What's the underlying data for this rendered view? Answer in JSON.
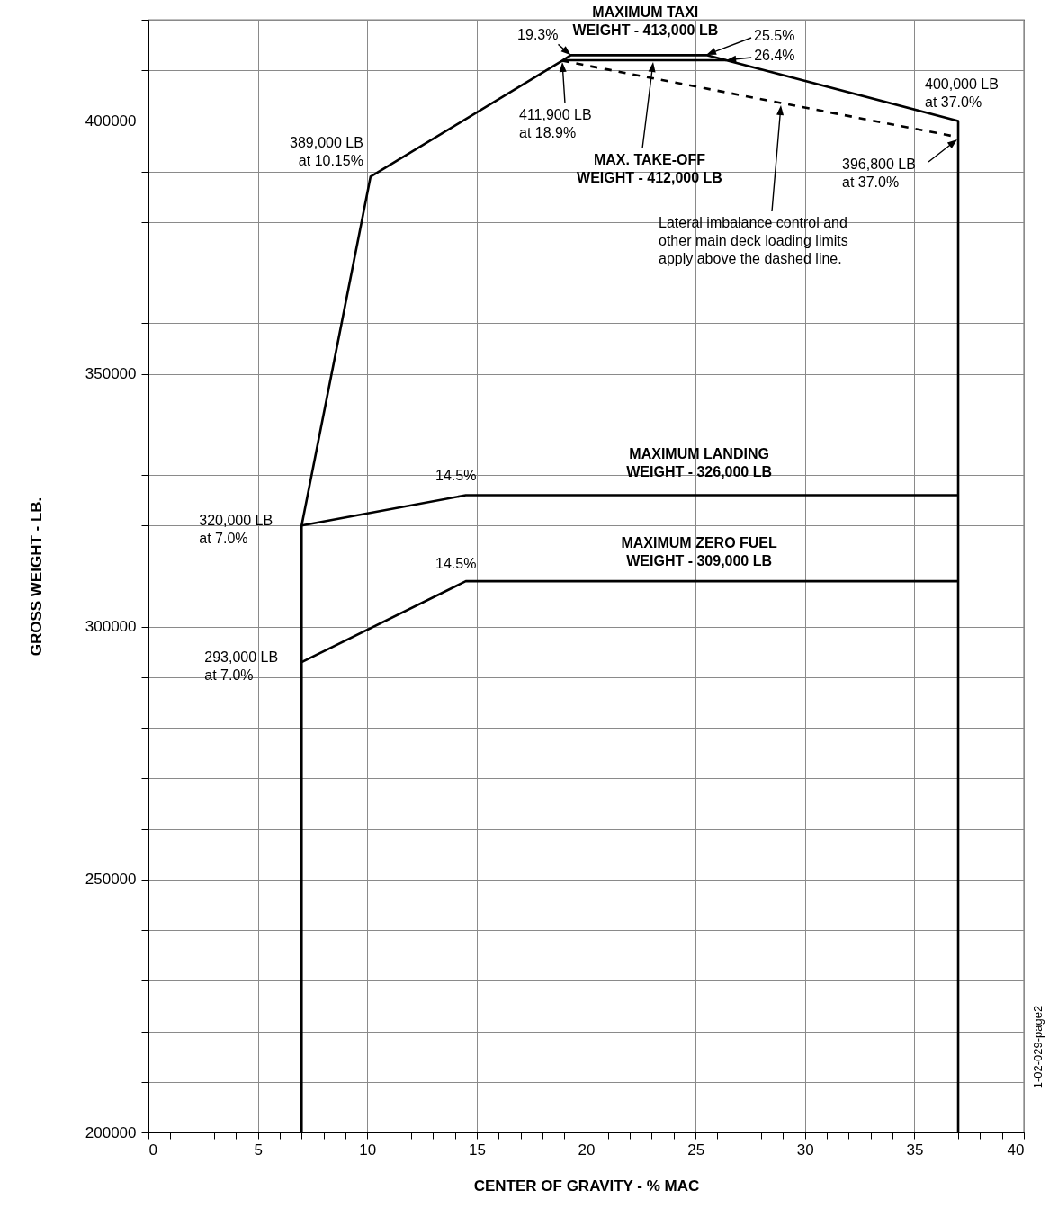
{
  "chart_data": {
    "type": "line",
    "xlabel": "CENTER OF GRAVITY - % MAC",
    "ylabel": "GROSS WEIGHT - LB.",
    "xlim": [
      0,
      40
    ],
    "ylim": [
      200000,
      420000
    ],
    "xticks": [
      0,
      {
        "value": 1,
        "label": null
      },
      {
        "value": 2,
        "label": null
      },
      {
        "value": 3,
        "label": null
      },
      {
        "value": 4,
        "label": null
      },
      5,
      {
        "value": 6,
        "label": null
      },
      {
        "value": 7,
        "label": null
      },
      {
        "value": 8,
        "label": null
      },
      {
        "value": 9,
        "label": null
      },
      10,
      {
        "value": 11,
        "label": null
      },
      {
        "value": 12,
        "label": null
      },
      {
        "value": 13,
        "label": null
      },
      {
        "value": 14,
        "label": null
      },
      15,
      {
        "value": 16,
        "label": null
      },
      {
        "value": 17,
        "label": null
      },
      {
        "value": 18,
        "label": null
      },
      {
        "value": 19,
        "label": null
      },
      20,
      {
        "value": 21,
        "label": null
      },
      {
        "value": 22,
        "label": null
      },
      {
        "value": 23,
        "label": null
      },
      {
        "value": 24,
        "label": null
      },
      25,
      {
        "value": 26,
        "label": null
      },
      {
        "value": 27,
        "label": null
      },
      {
        "value": 28,
        "label": null
      },
      {
        "value": 29,
        "label": null
      },
      30,
      {
        "value": 31,
        "label": null
      },
      {
        "value": 32,
        "label": null
      },
      {
        "value": 33,
        "label": null
      },
      {
        "value": 34,
        "label": null
      },
      35,
      {
        "value": 36,
        "label": null
      },
      {
        "value": 37,
        "label": null
      },
      {
        "value": 38,
        "label": null
      },
      {
        "value": 39,
        "label": null
      },
      40
    ],
    "yticks": [
      200000,
      {
        "value": 210000,
        "label": null
      },
      {
        "value": 220000,
        "label": null
      },
      {
        "value": 230000,
        "label": null
      },
      {
        "value": 240000,
        "label": null
      },
      250000,
      {
        "value": 260000,
        "label": null
      },
      {
        "value": 270000,
        "label": null
      },
      {
        "value": 280000,
        "label": null
      },
      {
        "value": 290000,
        "label": null
      },
      300000,
      {
        "value": 310000,
        "label": null
      },
      {
        "value": 320000,
        "label": null
      },
      {
        "value": 330000,
        "label": null
      },
      {
        "value": 340000,
        "label": null
      },
      350000,
      {
        "value": 360000,
        "label": null
      },
      {
        "value": 370000,
        "label": null
      },
      {
        "value": 380000,
        "label": null
      },
      {
        "value": 390000,
        "label": null
      },
      400000,
      {
        "value": 410000,
        "label": null
      },
      {
        "value": 420000,
        "label": null
      }
    ],
    "grid": true,
    "marker": "none",
    "series": [
      {
        "type": "line",
        "color": "#000000",
        "line_style": "solid",
        "x": [
          7,
          7,
          10.15,
          18.9,
          19.3,
          25.5,
          26.4,
          37,
          37
        ],
        "values": [
          200000,
          320000,
          389000,
          411900,
          413000,
          413000,
          412000,
          400000,
          200000
        ]
      },
      {
        "type": "line",
        "color": "#000000",
        "line_style": "solid",
        "x": [
          19.0,
          26.4
        ],
        "values": [
          412000,
          412000
        ]
      },
      {
        "type": "line",
        "color": "#000000",
        "line_style": "dashed",
        "x": [
          18.9,
          37
        ],
        "values": [
          411900,
          396800
        ]
      },
      {
        "type": "line",
        "color": "#000000",
        "line_style": "solid",
        "x": [
          7,
          14.5,
          37
        ],
        "values": [
          320000,
          326000,
          326000
        ]
      },
      {
        "type": "line",
        "color": "#000000",
        "line_style": "solid",
        "x": [
          7,
          14.5,
          37
        ],
        "values": [
          293000,
          309000,
          309000
        ]
      }
    ],
    "annotations": [
      {
        "text": "MAXIMUM TAXI\nWEIGHT - 413,000 LB",
        "x": 22.5,
        "y": 413000
      },
      {
        "text": "19.3%",
        "x": 19.3,
        "y": 413000
      },
      "25.5%",
      {
        "text": "26.4%",
        "x": 26.4,
        "y": 412000
      },
      {
        "text": "400,000 LB\nat 37.0%",
        "x": 37,
        "y": 400000
      },
      "411,900 LB\nat 18.9%",
      "MAX. TAKE-OFF\nWEIGHT - 412,000 LB",
      {
        "text": "389,000 LB\nat 10.15%",
        "x": 10.15,
        "y": 389000
      },
      "396,800 LB\nat 37.0%",
      "Lateral imbalance control and\nother main deck loading limits\napply above the dashed line.",
      {
        "text": "MAXIMUM LANDING\nWEIGHT - 326,000 LB",
        "x": 25,
        "y": 326000
      },
      {
        "text": "14.5%",
        "x": 14.5,
        "y": 326000
      },
      {
        "text": "MAXIMUM ZERO FUEL\nWEIGHT - 309,000 LB",
        "x": 25,
        "y": 309000
      },
      {
        "text": "14.5%",
        "x": 14.5,
        "y": 309000
      },
      {
        "text": "320,000 LB\nat 7.0%",
        "x": 7,
        "y": 320000
      },
      {
        "text": "293,000 LB\nat 7.0%",
        "x": 7,
        "y": 293000
      },
      "1-02-029-page2"
    ]
  }
}
